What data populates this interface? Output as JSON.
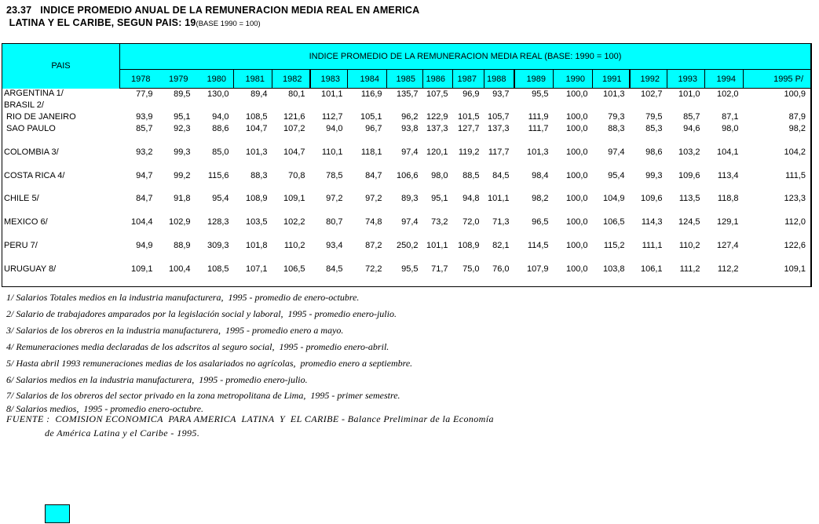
{
  "title": {
    "line1": "23.37   INDICE PROMEDIO ANUAL DE LA REMUNERACION MEDIA REAL EN AMERICA",
    "line2": " LATINA Y EL CARIBE, SEGUN PAIS: 19",
    "base_note": "(BASE 1990 = 100)"
  },
  "colors": {
    "header_cyan": "#00FFFF",
    "border": "#000000"
  },
  "table": {
    "pais_header": "PAIS",
    "index_header": "INDICE PROMEDIO DE LA REMUNERACION MEDIA REAL (BASE: 1990 = 100)",
    "years": [
      "1978",
      "1979",
      "1980",
      "1981",
      "1982",
      "1983",
      "1984",
      "1985",
      "1986",
      "1987",
      "1988",
      "1989",
      "1990",
      "1991",
      "1992",
      "1993",
      "1994",
      "1995 P/"
    ],
    "rows": [
      {
        "pais": "ARGENTINA 1/",
        "values": [
          "77,9",
          "89,5",
          "130,0",
          "89,4",
          "80,1",
          "101,1",
          "116,9",
          "135,7",
          "107,5",
          "96,9",
          "93,7",
          "95,5",
          "100,0",
          "101,3",
          "102,7",
          "101,0",
          "102,0",
          "100,9"
        ]
      },
      {
        "pais": "BRASIL 2/",
        "values": []
      },
      {
        "pais": " RIO DE JANEIRO",
        "values": [
          "93,9",
          "95,1",
          "94,0",
          "108,5",
          "121,6",
          "112,7",
          "105,1",
          "96,2",
          "122,9",
          "101,5",
          "105,7",
          "111,9",
          "100,0",
          "79,3",
          "79,5",
          "85,7",
          "87,1",
          "87,9"
        ]
      },
      {
        "pais": " SAO PAULO",
        "values": [
          "85,7",
          "92,3",
          "88,6",
          "104,7",
          "107,2",
          "94,0",
          "96,7",
          "93,8",
          "137,3",
          "127,7",
          "137,3",
          "111,7",
          "100,0",
          "88,3",
          "85,3",
          "94,6",
          "98,0",
          "98,2"
        ]
      },
      {
        "pais": "",
        "values": []
      },
      {
        "pais": "COLOMBIA 3/",
        "values": [
          "93,2",
          "99,3",
          "85,0",
          "101,3",
          "104,7",
          "110,1",
          "118,1",
          "97,4",
          "120,1",
          "119,2",
          "117,7",
          "101,3",
          "100,0",
          "97,4",
          "98,6",
          "103,2",
          "104,1",
          "104,2"
        ]
      },
      {
        "pais": "",
        "values": []
      },
      {
        "pais": "COSTA RICA 4/",
        "values": [
          "94,7",
          "99,2",
          "115,6",
          "88,3",
          "70,8",
          "78,5",
          "84,7",
          "106,6",
          "98,0",
          "88,5",
          "84,5",
          "98,4",
          "100,0",
          "95,4",
          "99,3",
          "109,6",
          "113,4",
          "111,5"
        ]
      },
      {
        "pais": "",
        "values": []
      },
      {
        "pais": "CHILE 5/",
        "values": [
          "84,7",
          "91,8",
          "95,4",
          "108,9",
          "109,1",
          "97,2",
          "97,2",
          "89,3",
          "95,1",
          "94,8",
          "101,1",
          "98,2",
          "100,0",
          "104,9",
          "109,6",
          "113,5",
          "118,8",
          "123,3"
        ]
      },
      {
        "pais": "",
        "values": []
      },
      {
        "pais": "MEXICO 6/",
        "values": [
          "104,4",
          "102,9",
          "128,3",
          "103,5",
          "102,2",
          "80,7",
          "74,8",
          "97,4",
          "73,2",
          "72,0",
          "71,3",
          "96,5",
          "100,0",
          "106,5",
          "114,3",
          "124,5",
          "129,1",
          "112,0"
        ]
      },
      {
        "pais": "",
        "values": []
      },
      {
        "pais": "PERU 7/",
        "values": [
          "94,9",
          "88,9",
          "309,3",
          "101,8",
          "110,2",
          "93,4",
          "87,2",
          "250,2",
          "101,1",
          "108,9",
          "82,1",
          "114,5",
          "100,0",
          "115,2",
          "111,1",
          "110,2",
          "127,4",
          "122,6"
        ]
      },
      {
        "pais": "",
        "values": []
      },
      {
        "pais": "URUGUAY 8/",
        "values": [
          "109,1",
          "100,4",
          "108,5",
          "107,1",
          "106,5",
          "84,5",
          "72,2",
          "95,5",
          "71,7",
          "75,0",
          "76,0",
          "107,9",
          "100,0",
          "103,8",
          "106,1",
          "111,2",
          "112,2",
          "109,1"
        ]
      },
      {
        "pais": "",
        "values": []
      }
    ]
  },
  "footnotes": [
    "1/ Salarios Totales medios en la industria manufacturera,  1995 - promedio de enero-octubre.",
    "2/ Salario de trabajadores amparados por la legislación social y laboral,  1995 - promedio enero-julio.",
    "3/ Salarios de los obreros en la industria manufacturera,  1995 - promedio enero a mayo.",
    "4/ Remuneraciones media declaradas de los adscritos al seguro social,  1995 - promedio enero-abril.",
    "5/ Hasta abril 1993 remuneraciones medias de los asalariados no agrícolas,  promedio enero a septiembre.",
    "6/ Salarios medios en la industria manufacturera,  1995 - promedio enero-julio.",
    "7/ Salarios de los obreros del sector privado en la zona metropolitana de Lima,  1995 - primer semestre.",
    "8/ Salarios medios,  1995 - promedio enero-octubre."
  ],
  "fuente": {
    "line1": "FUENTE :  COMISION ECONOMICA  PARA AMERICA  LATINA  Y  EL CARIBE - Balance Preliminar de la Economía",
    "line2": "de América Latina y el Caribe - 1995."
  }
}
